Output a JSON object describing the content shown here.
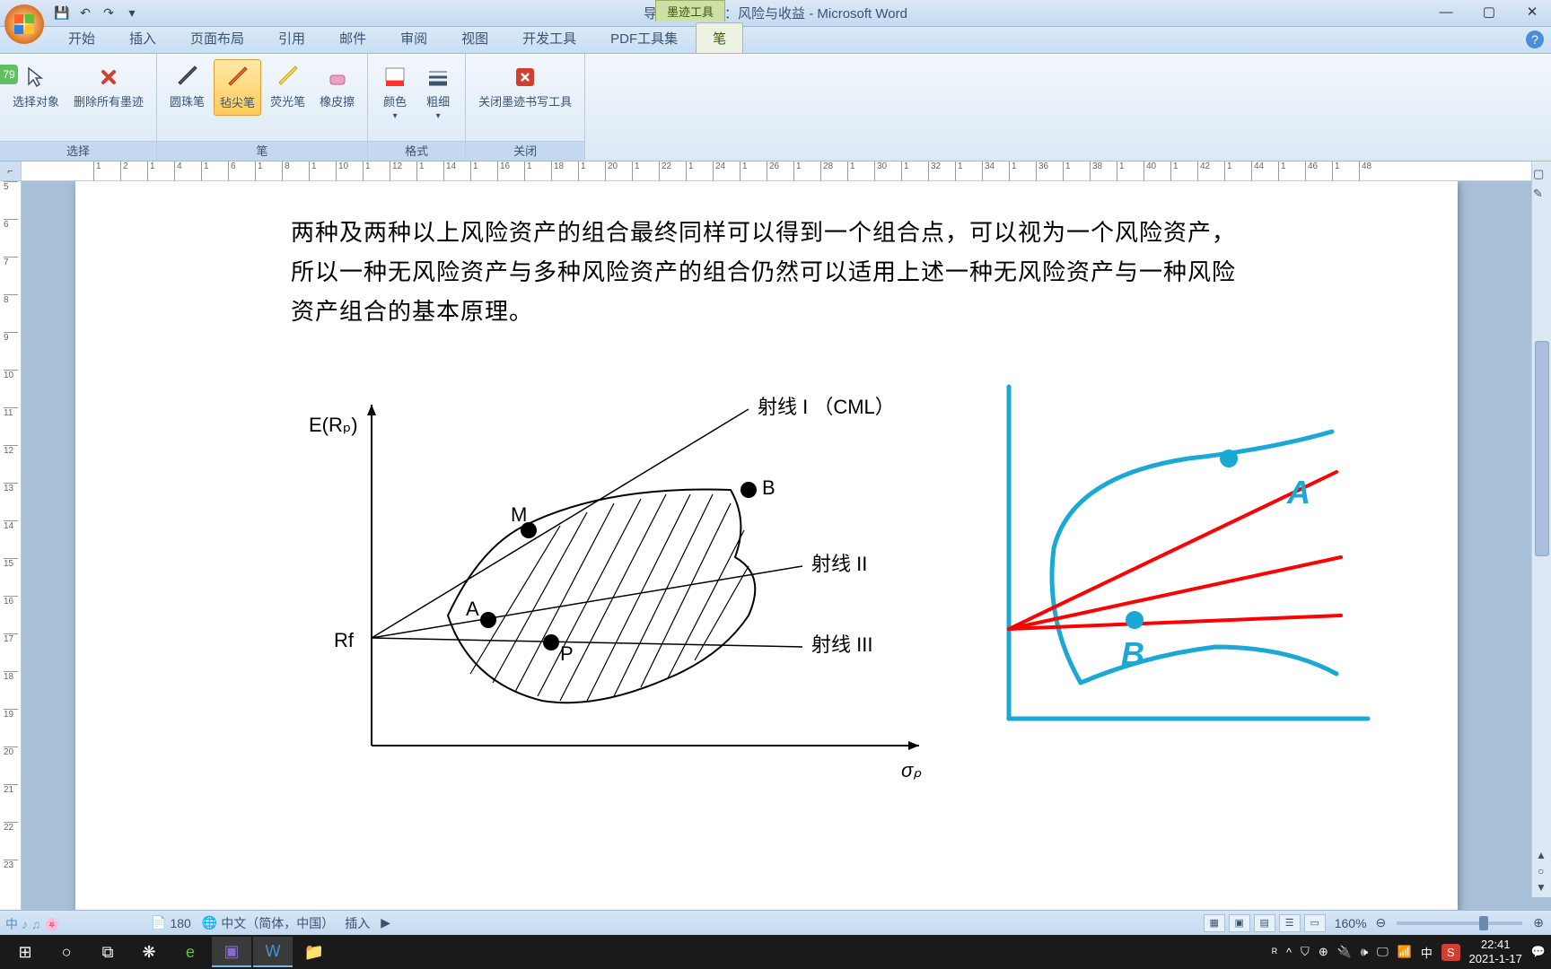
{
  "window": {
    "title": "导入班专题三：风险与收益 - Microsoft Word",
    "context_tab": "墨迹工具"
  },
  "ribbon": {
    "tabs": [
      "开始",
      "插入",
      "页面布局",
      "引用",
      "邮件",
      "审阅",
      "视图",
      "开发工具",
      "PDF工具集",
      "笔"
    ],
    "active_tab": 9,
    "groups": {
      "select": {
        "label": "选择",
        "buttons": [
          {
            "label": "选择对象",
            "icon": "cursor"
          },
          {
            "label": "删除所有墨迹",
            "icon": "delete"
          }
        ]
      },
      "pen": {
        "label": "笔",
        "buttons": [
          {
            "label": "圆珠笔",
            "icon": "pen1"
          },
          {
            "label": "毡尖笔",
            "icon": "pen2",
            "active": true
          },
          {
            "label": "荧光笔",
            "icon": "highlighter"
          },
          {
            "label": "橡皮擦",
            "icon": "eraser"
          }
        ]
      },
      "format": {
        "label": "格式",
        "buttons": [
          {
            "label": "颜色",
            "icon": "color"
          },
          {
            "label": "粗细",
            "icon": "weight"
          }
        ]
      },
      "close": {
        "label": "关闭",
        "buttons": [
          {
            "label": "关闭墨迹书写工具",
            "icon": "close"
          }
        ]
      }
    }
  },
  "ruler": {
    "active_badge": "79",
    "h_ticks": [
      "1",
      "2",
      "1",
      "4",
      "1",
      "6",
      "1",
      "8",
      "1",
      "10",
      "1",
      "12",
      "1",
      "14",
      "1",
      "16",
      "1",
      "18",
      "1",
      "20",
      "1",
      "22",
      "1",
      "24",
      "1",
      "26",
      "1",
      "28",
      "1",
      "30",
      "1",
      "32",
      "1",
      "34",
      "1",
      "36",
      "1",
      "38",
      "1",
      "40",
      "1",
      "42",
      "1",
      "44",
      "1",
      "46",
      "1",
      "48"
    ],
    "v_ticks": [
      "5",
      "6",
      "7",
      "8",
      "9",
      "10",
      "11",
      "12",
      "13",
      "14",
      "15",
      "16",
      "17",
      "18",
      "19",
      "20",
      "21",
      "22",
      "23"
    ]
  },
  "document": {
    "paragraph": "两种及两种以上风险资产的组合最终同样可以得到一个组合点，可以视为一个风险资产，所以一种无风险资产与多种风险资产的组合仍然可以适用上述一种无风险资产与一种风险资产组合的基本原理。",
    "chart1": {
      "y_label": "E(Rₚ)",
      "x_label": "σₚ",
      "origin_label": "Rf",
      "points": {
        "M": "M",
        "A": "A",
        "P": "P",
        "B": "B"
      },
      "lines": {
        "I": "射线 I （CML）",
        "II": "射线 II",
        "III": "射线 III"
      },
      "colors": {
        "axis": "#000000",
        "line": "#000000",
        "hatch": "#000000"
      }
    },
    "chart2": {
      "labels": {
        "A": "A",
        "B": "B"
      },
      "colors": {
        "axis": "#1ba8d4",
        "curve": "#1ba8d4",
        "rays": "#ff0000",
        "point": "#1ba8d4"
      }
    }
  },
  "statusbar": {
    "page": "180",
    "language": "中文（简体，中国）",
    "mode": "插入",
    "zoom": "160%",
    "view_icons": [
      "▦",
      "▣",
      "▤",
      "☰",
      "▭"
    ]
  },
  "lang_indicator": {
    "text": "中",
    "extras": "♪ ♫"
  },
  "taskbar": {
    "time": "22:41",
    "date": "2021-1-17",
    "tray_icons": [
      "ᴿ",
      "^",
      "⛉",
      "⊕",
      "🔌",
      "🕪",
      "🖵",
      "📶",
      "中",
      "S"
    ]
  }
}
